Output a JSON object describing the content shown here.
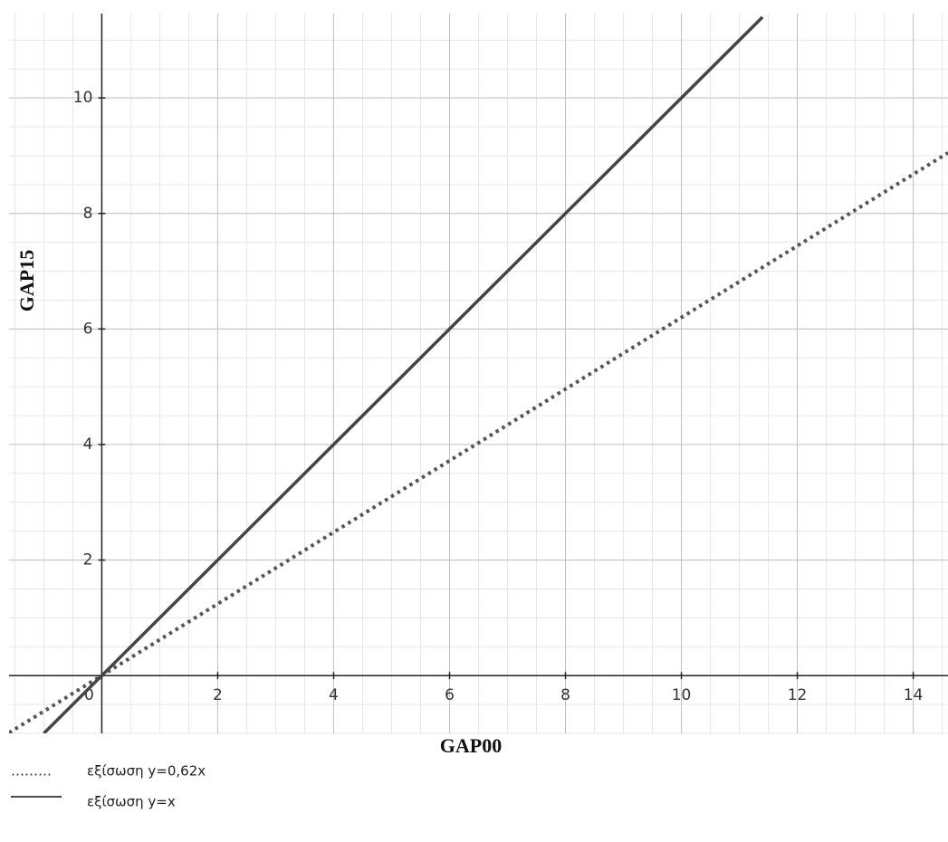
{
  "chart_data": {
    "type": "line",
    "x_label": "GAP00",
    "y_label": "GAP15",
    "xlim": [
      -1.6,
      14.6
    ],
    "ylim": [
      -1.0,
      11.46
    ],
    "xticks": [
      0,
      2,
      4,
      6,
      8,
      10,
      12,
      14
    ],
    "yticks": [
      2,
      4,
      6,
      8,
      10
    ],
    "grid": true,
    "minor_grid": 0.5,
    "series": [
      {
        "name": "εξίσωση y=0,62x",
        "legend_symbol": "………",
        "color": "#555555",
        "style": "dotted",
        "x": [
          -1.6,
          14.6
        ],
        "values": [
          -0.99,
          9.05
        ]
      },
      {
        "name": "εξίσωση y=x",
        "color": "#444444",
        "style": "solid",
        "x": [
          -1.0,
          11.4
        ],
        "values": [
          -1.0,
          11.4
        ]
      }
    ]
  }
}
